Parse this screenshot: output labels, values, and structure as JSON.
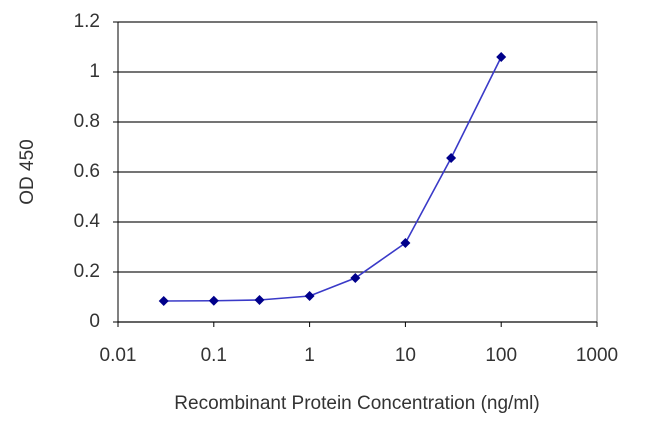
{
  "chart_data": {
    "type": "line",
    "x_label": "Recombinant Protein Concentration (ng/ml)",
    "y_label": "OD 450",
    "x": [
      0.03,
      0.1,
      0.3,
      1,
      3,
      10,
      30,
      100
    ],
    "series": [
      {
        "color": "#00008b",
        "line_color": "#3a3ac8",
        "values": [
          0.084,
          0.085,
          0.088,
          0.104,
          0.176,
          0.316,
          0.656,
          1.06
        ]
      }
    ],
    "xlim": [
      0.01,
      1000
    ],
    "xticks": [
      0.01,
      0.1,
      1,
      10,
      100,
      1000
    ],
    "x_log": true,
    "ylim": [
      0,
      1.2
    ],
    "yticks": [
      0,
      0.2,
      0.4,
      0.6,
      0.8,
      1,
      1.2
    ],
    "grid": true
  }
}
